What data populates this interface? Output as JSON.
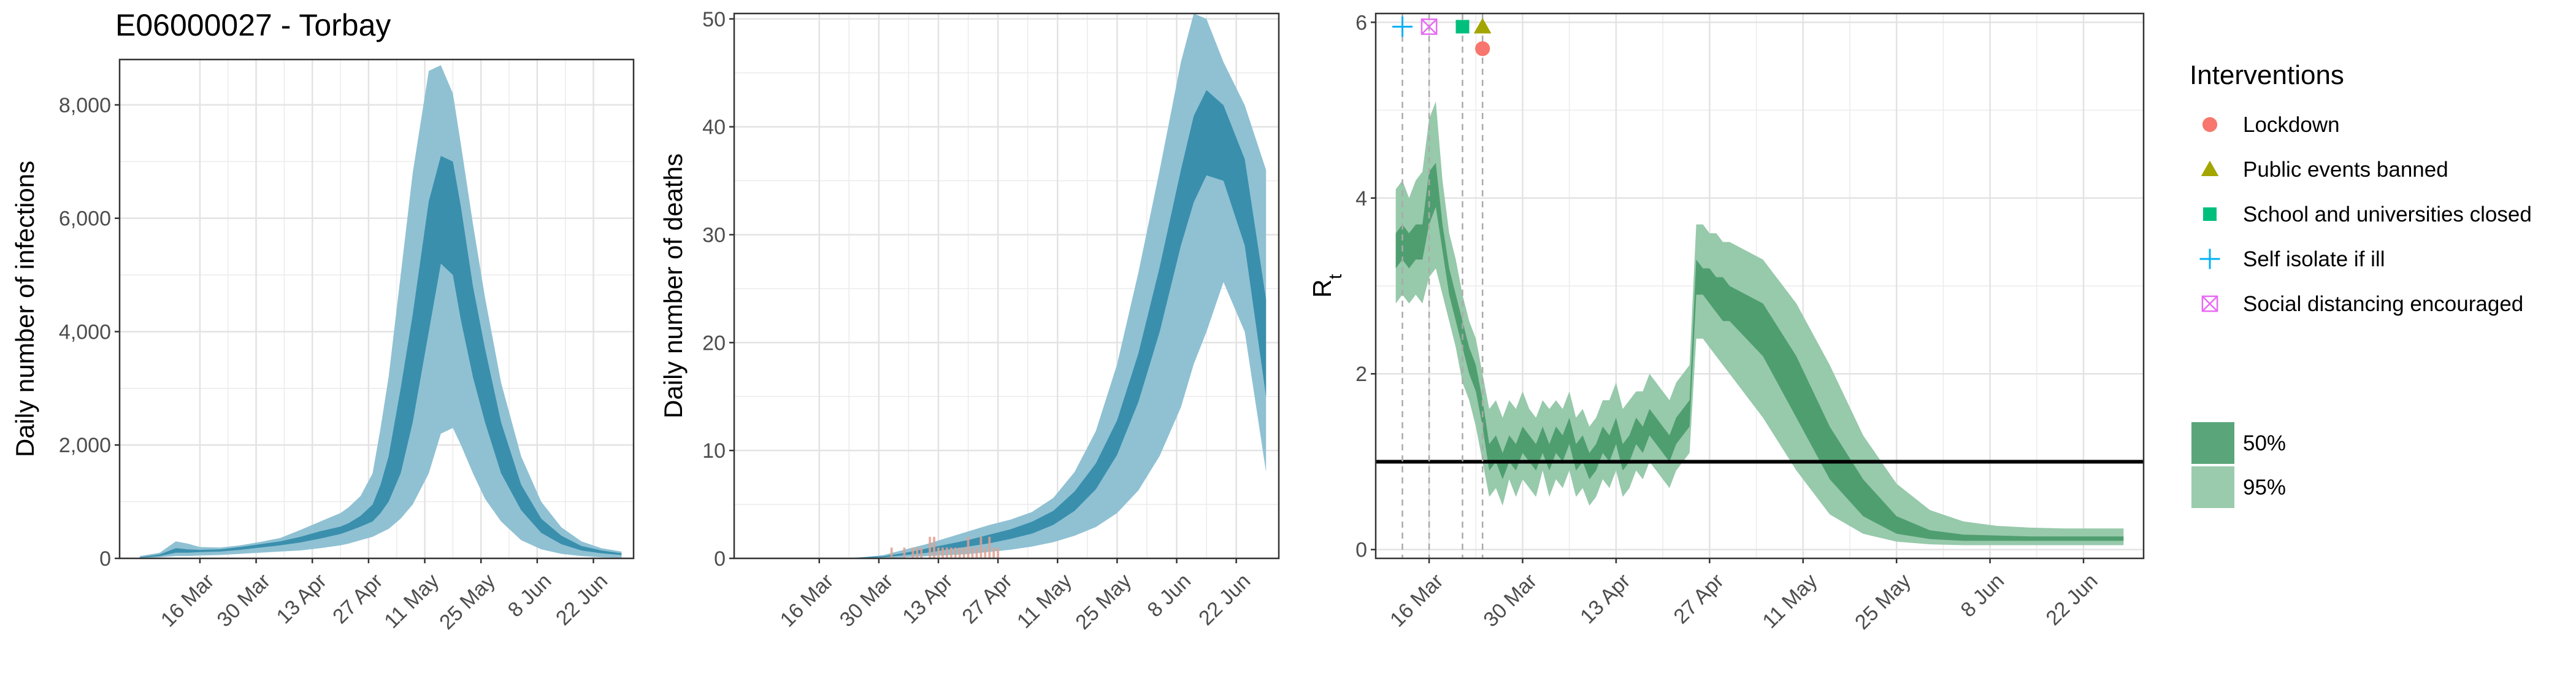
{
  "title": "E06000027 - Torbay",
  "colors": {
    "band_outer_blue": "#8fc1d3",
    "band_inner_blue": "#3a8fad",
    "band_outer_green": "#97c9ab",
    "band_inner_green": "#4f9e70",
    "deaths_bar": "#e0a090",
    "grid": "#ebebeb",
    "lockdown": "#f8766d",
    "public_events": "#a3a500",
    "schools": "#00bf7d",
    "self_isolate": "#00b0f6",
    "social_distancing": "#e76bf3"
  },
  "chart_data": [
    {
      "type": "area",
      "panel": "infections",
      "title": "E06000027 - Torbay",
      "xlabel": "",
      "ylabel": "Daily number of infections",
      "x_tick_labels": [
        "16 Mar",
        "30 Mar",
        "13 Apr",
        "27 Apr",
        "11 May",
        "25 May",
        "8 Jun",
        "22 Jun"
      ],
      "x_tick_days": [
        15,
        29,
        43,
        57,
        71,
        85,
        99,
        113
      ],
      "y_ticks": [
        0,
        2000,
        4000,
        6000,
        8000
      ],
      "y_tick_labels": [
        "0",
        "2,000",
        "4,000",
        "6,000",
        "8,000"
      ],
      "xlim_days": [
        -5,
        123
      ],
      "ylim": [
        0,
        8800
      ],
      "grid": true,
      "x": [
        0,
        5,
        9,
        12,
        15,
        20,
        25,
        30,
        35,
        40,
        45,
        50,
        52,
        55,
        58,
        60,
        62,
        65,
        68,
        72,
        75,
        78,
        80,
        83,
        86,
        90,
        95,
        100,
        105,
        110,
        115,
        120
      ],
      "series": [
        {
          "band": "95%",
          "lower": [
            0,
            20,
            40,
            40,
            50,
            60,
            80,
            100,
            120,
            140,
            180,
            230,
            260,
            320,
            380,
            450,
            520,
            700,
            950,
            1500,
            2200,
            2300,
            2000,
            1500,
            1050,
            650,
            320,
            160,
            80,
            40,
            20,
            10
          ],
          "upper": [
            40,
            100,
            300,
            260,
            200,
            190,
            230,
            290,
            360,
            500,
            650,
            800,
            900,
            1100,
            1500,
            2300,
            3200,
            5000,
            6800,
            8600,
            8700,
            8200,
            7300,
            5900,
            4600,
            3100,
            1800,
            1000,
            550,
            300,
            180,
            120
          ]
        },
        {
          "band": "50%",
          "lower": [
            10,
            40,
            100,
            100,
            110,
            120,
            150,
            190,
            230,
            280,
            350,
            430,
            480,
            560,
            650,
            800,
            1000,
            1500,
            2400,
            4000,
            5200,
            5000,
            4200,
            3200,
            2400,
            1500,
            850,
            450,
            250,
            140,
            90,
            60
          ],
          "upper": [
            20,
            70,
            180,
            160,
            150,
            160,
            200,
            250,
            300,
            380,
            480,
            560,
            620,
            750,
            950,
            1300,
            1800,
            3000,
            4300,
            6300,
            7100,
            7000,
            6200,
            4800,
            3700,
            2400,
            1300,
            700,
            400,
            220,
            140,
            90
          ]
        }
      ]
    },
    {
      "type": "area",
      "panel": "deaths",
      "xlabel": "",
      "ylabel": "Daily number of deaths",
      "x_tick_labels": [
        "16 Mar",
        "30 Mar",
        "13 Apr",
        "27 Apr",
        "11 May",
        "25 May",
        "8 Jun",
        "22 Jun"
      ],
      "x_tick_days": [
        15,
        29,
        43,
        57,
        71,
        85,
        99,
        113
      ],
      "y_ticks": [
        0,
        10,
        20,
        30,
        40,
        50
      ],
      "y_tick_labels": [
        "0",
        "10",
        "20",
        "30",
        "40",
        "50"
      ],
      "xlim_days": [
        -5,
        123
      ],
      "ylim": [
        0,
        50.5
      ],
      "grid": true,
      "x": [
        20,
        25,
        30,
        35,
        40,
        45,
        50,
        55,
        60,
        65,
        70,
        75,
        80,
        85,
        90,
        95,
        100,
        103,
        106,
        110,
        115,
        120
      ],
      "series": [
        {
          "band": "95%",
          "lower": [
            0,
            0,
            0,
            0.1,
            0.2,
            0.3,
            0.4,
            0.6,
            0.8,
            1.1,
            1.5,
            2.1,
            2.9,
            4.2,
            6.3,
            9.5,
            14,
            18,
            21,
            25.6,
            21,
            8
          ],
          "upper": [
            0,
            0.1,
            0.3,
            0.8,
            1.3,
            1.9,
            2.5,
            3.1,
            3.6,
            4.3,
            5.6,
            8,
            11.8,
            18,
            26.5,
            36,
            46,
            50.5,
            50,
            46,
            42,
            36
          ]
        },
        {
          "band": "50%",
          "lower": [
            0,
            0,
            0.1,
            0.3,
            0.5,
            0.8,
            1.1,
            1.4,
            1.8,
            2.3,
            3.1,
            4.4,
            6.4,
            9.6,
            14.5,
            21,
            29,
            33,
            35.5,
            35,
            29,
            15
          ],
          "upper": [
            0,
            0.1,
            0.2,
            0.5,
            0.9,
            1.3,
            1.7,
            2.2,
            2.7,
            3.4,
            4.4,
            6.2,
            8.8,
            12.8,
            19,
            27,
            36,
            41,
            43.4,
            42,
            37,
            24
          ]
        }
      ],
      "observed_deaths": {
        "days": [
          32,
          35,
          37,
          38,
          39,
          41,
          42,
          43,
          44,
          45,
          46,
          47,
          48,
          49,
          50,
          51,
          52,
          53,
          54,
          55,
          56,
          57
        ],
        "values": [
          1,
          1,
          1,
          1,
          1,
          2,
          2,
          1,
          1,
          1,
          1,
          1,
          1,
          1,
          2,
          1,
          1,
          2,
          1,
          2,
          1,
          1
        ]
      }
    },
    {
      "type": "area",
      "panel": "rt",
      "xlabel": "",
      "ylabel": "R",
      "ylabel_subscript": "t",
      "x_tick_labels": [
        "16 Mar",
        "30 Mar",
        "13 Apr",
        "27 Apr",
        "11 May",
        "25 May",
        "8 Jun",
        "22 Jun"
      ],
      "x_tick_days": [
        15,
        29,
        43,
        57,
        71,
        85,
        99,
        113
      ],
      "y_ticks": [
        0,
        2,
        4,
        6
      ],
      "y_tick_labels": [
        "0",
        "2",
        "4",
        "6"
      ],
      "xlim_days": [
        7,
        122
      ],
      "ylim": [
        -0.1,
        6.1
      ],
      "grid": true,
      "reference_line": 1,
      "x": [
        10,
        11,
        12,
        13,
        14,
        15,
        16,
        17,
        18,
        19,
        20,
        21,
        22,
        23,
        24,
        25,
        26,
        27,
        28,
        29,
        30,
        31,
        32,
        33,
        34,
        35,
        36,
        37,
        38,
        39,
        40,
        41,
        42,
        43,
        44,
        45,
        46,
        47,
        48,
        49,
        50,
        51,
        52,
        53,
        54,
        55,
        56,
        57,
        58,
        59,
        60,
        65,
        70,
        75,
        80,
        85,
        90,
        95,
        100,
        105,
        110,
        115,
        119
      ],
      "series": [
        {
          "band": "95%",
          "lower": [
            2.8,
            2.9,
            2.8,
            2.9,
            2.8,
            3.1,
            3.2,
            2.9,
            2.6,
            2.3,
            1.9,
            1.7,
            1.4,
            1.0,
            0.6,
            0.7,
            0.5,
            0.8,
            0.6,
            0.8,
            0.7,
            0.6,
            0.9,
            0.6,
            0.8,
            0.7,
            0.9,
            0.6,
            0.7,
            0.5,
            0.6,
            0.8,
            0.7,
            0.9,
            0.6,
            0.7,
            0.9,
            0.8,
            1.0,
            0.9,
            0.8,
            0.7,
            0.9,
            1.0,
            1.1,
            2.4,
            2.4,
            2.3,
            2.2,
            2.1,
            2.0,
            1.5,
            0.9,
            0.4,
            0.18,
            0.09,
            0.06,
            0.05,
            0.05,
            0.05,
            0.05,
            0.05,
            0.05
          ],
          "upper": [
            4.1,
            4.2,
            4.0,
            4.2,
            4.3,
            4.9,
            5.1,
            4.2,
            3.6,
            3.3,
            2.9,
            2.6,
            2.4,
            2.0,
            1.6,
            1.7,
            1.5,
            1.7,
            1.6,
            1.8,
            1.6,
            1.5,
            1.7,
            1.6,
            1.7,
            1.6,
            1.8,
            1.5,
            1.6,
            1.4,
            1.5,
            1.7,
            1.7,
            1.9,
            1.6,
            1.7,
            1.8,
            1.8,
            2.0,
            1.9,
            1.8,
            1.7,
            1.9,
            2.0,
            2.1,
            3.7,
            3.7,
            3.6,
            3.6,
            3.5,
            3.5,
            3.3,
            2.8,
            2.1,
            1.3,
            0.75,
            0.45,
            0.32,
            0.27,
            0.25,
            0.24,
            0.24,
            0.24
          ]
        },
        {
          "band": "50%",
          "lower": [
            3.2,
            3.3,
            3.2,
            3.3,
            3.3,
            3.7,
            3.9,
            3.4,
            2.9,
            2.6,
            2.3,
            2.0,
            1.8,
            1.4,
            0.9,
            1.0,
            0.8,
            1.0,
            0.9,
            1.1,
            1.0,
            0.9,
            1.1,
            0.9,
            1.1,
            1.0,
            1.2,
            0.9,
            1.0,
            0.8,
            0.9,
            1.1,
            1.0,
            1.2,
            0.9,
            1.0,
            1.2,
            1.1,
            1.3,
            1.2,
            1.1,
            1.0,
            1.2,
            1.3,
            1.4,
            2.9,
            2.9,
            2.8,
            2.7,
            2.6,
            2.6,
            2.2,
            1.5,
            0.8,
            0.38,
            0.18,
            0.12,
            0.1,
            0.1,
            0.1,
            0.1,
            0.1,
            0.1
          ],
          "upper": [
            3.6,
            3.7,
            3.6,
            3.7,
            3.7,
            4.3,
            4.4,
            3.7,
            3.2,
            2.9,
            2.6,
            2.3,
            2.1,
            1.7,
            1.2,
            1.3,
            1.1,
            1.3,
            1.2,
            1.4,
            1.3,
            1.2,
            1.4,
            1.2,
            1.4,
            1.3,
            1.5,
            1.2,
            1.3,
            1.1,
            1.2,
            1.4,
            1.3,
            1.5,
            1.2,
            1.3,
            1.5,
            1.4,
            1.6,
            1.5,
            1.4,
            1.3,
            1.5,
            1.6,
            1.7,
            3.3,
            3.2,
            3.2,
            3.1,
            3.1,
            3.0,
            2.8,
            2.2,
            1.4,
            0.8,
            0.38,
            0.22,
            0.17,
            0.16,
            0.15,
            0.15,
            0.15,
            0.15
          ]
        }
      ],
      "interventions": [
        {
          "name": "Self isolate if ill",
          "day": 11,
          "marker": "plus",
          "y": 5.95,
          "color": "#00b0f6"
        },
        {
          "name": "Social distancing encouraged",
          "day": 15,
          "marker": "box-x",
          "y": 5.95,
          "color": "#e76bf3"
        },
        {
          "name": "School and universities closed",
          "day": 20,
          "marker": "square",
          "y": 5.95,
          "color": "#00bf7d"
        },
        {
          "name": "Public events banned",
          "day": 23,
          "marker": "triangle",
          "y": 5.95,
          "color": "#a3a500"
        },
        {
          "name": "Lockdown",
          "day": 23,
          "marker": "circle",
          "y": 5.7,
          "color": "#f8766d"
        }
      ]
    }
  ],
  "legend": {
    "interventions_title": "Interventions",
    "interventions": [
      {
        "label": "Lockdown",
        "marker": "circle",
        "color": "#f8766d"
      },
      {
        "label": "Public events banned",
        "marker": "triangle",
        "color": "#a3a500"
      },
      {
        "label": "School and universities closed",
        "marker": "square",
        "color": "#00bf7d"
      },
      {
        "label": "Self isolate if ill",
        "marker": "plus",
        "color": "#00b0f6"
      },
      {
        "label": "Social distancing encouraged",
        "marker": "box-x",
        "color": "#e76bf3"
      }
    ],
    "bands": [
      {
        "label": "50%",
        "color": "#5aa57a"
      },
      {
        "label": "95%",
        "color": "#9acbad"
      }
    ]
  }
}
